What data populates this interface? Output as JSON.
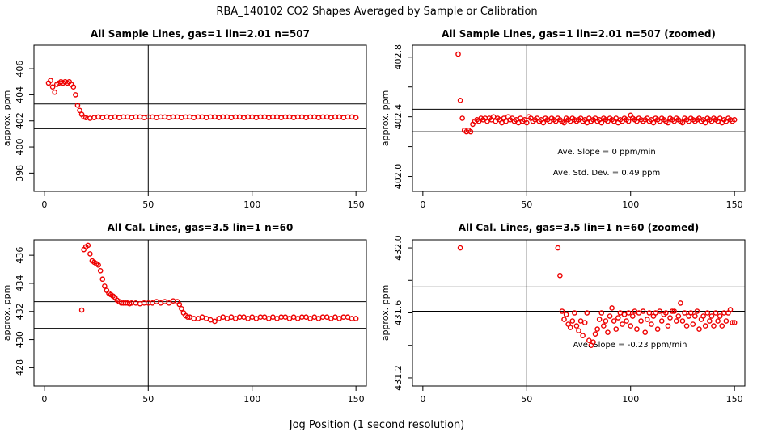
{
  "title": "RBA_140102  CO2 Shapes Averaged by Sample or Calibration",
  "xlabel": "Jog Position (1 second resolution)",
  "colors": {
    "points": "#ee0000",
    "lines": "#000000",
    "background": "#ffffff"
  },
  "chart_data": [
    {
      "type": "scatter",
      "title": "All Sample Lines, gas=1 lin=2.01 n=507",
      "ylabel": "approx. ppm",
      "xlim": [
        -5,
        155
      ],
      "ylim": [
        396.6,
        407.8
      ],
      "xticks": [
        0,
        50,
        100,
        150
      ],
      "yticks": [
        398,
        400,
        402,
        404,
        406
      ],
      "vline": 50,
      "hlines": [
        403.3,
        401.4
      ],
      "annotations": [],
      "series": [
        {
          "name": "sample average",
          "x": [
            2,
            3,
            4,
            5,
            6,
            7,
            8,
            9,
            10,
            11,
            12,
            13,
            14,
            15,
            16,
            17,
            18,
            19,
            20,
            22,
            24,
            26,
            28,
            30,
            32,
            34,
            36,
            38,
            40,
            42,
            44,
            46,
            48,
            50,
            52,
            54,
            56,
            58,
            60,
            62,
            64,
            66,
            68,
            70,
            72,
            74,
            76,
            78,
            80,
            82,
            84,
            86,
            88,
            90,
            92,
            94,
            96,
            98,
            100,
            102,
            104,
            106,
            108,
            110,
            112,
            114,
            116,
            118,
            120,
            122,
            124,
            126,
            128,
            130,
            132,
            134,
            136,
            138,
            140,
            142,
            144,
            146,
            148,
            150
          ],
          "y": [
            404.9,
            405.1,
            404.6,
            404.2,
            404.8,
            404.9,
            405.0,
            404.9,
            405.0,
            404.9,
            405.0,
            404.8,
            404.6,
            404.0,
            403.2,
            402.8,
            402.5,
            402.3,
            402.25,
            402.2,
            402.25,
            402.3,
            402.25,
            402.3,
            402.25,
            402.3,
            402.25,
            402.3,
            402.3,
            402.25,
            402.3,
            402.3,
            402.25,
            402.3,
            402.3,
            402.25,
            402.3,
            402.3,
            402.25,
            402.3,
            402.3,
            402.25,
            402.3,
            402.3,
            402.25,
            402.3,
            402.3,
            402.25,
            402.3,
            402.3,
            402.25,
            402.3,
            402.3,
            402.25,
            402.3,
            402.3,
            402.25,
            402.3,
            402.3,
            402.25,
            402.3,
            402.3,
            402.25,
            402.3,
            402.3,
            402.25,
            402.3,
            402.3,
            402.25,
            402.3,
            402.3,
            402.25,
            402.3,
            402.3,
            402.25,
            402.3,
            402.3,
            402.25,
            402.3,
            402.3,
            402.25,
            402.3,
            402.3,
            402.25
          ]
        }
      ]
    },
    {
      "type": "scatter",
      "title": "All Sample Lines, gas=1 lin=2.01 n=507 (zoomed)",
      "ylabel": "approx. ppm",
      "xlim": [
        -5,
        155
      ],
      "ylim": [
        401.9,
        402.88
      ],
      "xticks": [
        0,
        50,
        100,
        150
      ],
      "yticks": [
        402.0,
        402.2,
        402.4,
        402.6,
        402.8
      ],
      "ytick_labels": [
        "402.0",
        "",
        "402.4",
        "",
        "402.8"
      ],
      "vline": 50,
      "hlines": [
        402.45,
        402.3
      ],
      "annotations": [
        "Ave. Slope =  0  ppm/min",
        "Ave. Std. Dev. =  0.49  ppm"
      ],
      "series": [
        {
          "name": "sample average (zoomed)",
          "x": [
            17,
            18,
            19,
            20,
            21,
            22,
            23,
            24,
            25,
            26,
            27,
            28,
            29,
            30,
            31,
            32,
            33,
            34,
            35,
            36,
            37,
            38,
            39,
            40,
            41,
            42,
            43,
            44,
            45,
            46,
            47,
            48,
            49,
            50,
            51,
            52,
            53,
            54,
            55,
            56,
            57,
            58,
            59,
            60,
            61,
            62,
            63,
            64,
            65,
            66,
            67,
            68,
            69,
            70,
            71,
            72,
            73,
            74,
            75,
            76,
            77,
            78,
            79,
            80,
            81,
            82,
            83,
            84,
            85,
            86,
            87,
            88,
            89,
            90,
            91,
            92,
            93,
            94,
            95,
            96,
            97,
            98,
            99,
            100,
            101,
            102,
            103,
            104,
            105,
            106,
            107,
            108,
            109,
            110,
            111,
            112,
            113,
            114,
            115,
            116,
            117,
            118,
            119,
            120,
            121,
            122,
            123,
            124,
            125,
            126,
            127,
            128,
            129,
            130,
            131,
            132,
            133,
            134,
            135,
            136,
            137,
            138,
            139,
            140,
            141,
            142,
            143,
            144,
            145,
            146,
            147,
            148,
            149,
            150
          ],
          "y": [
            402.82,
            402.51,
            402.39,
            402.31,
            402.3,
            402.31,
            402.3,
            402.35,
            402.37,
            402.38,
            402.37,
            402.39,
            402.38,
            402.39,
            402.37,
            402.39,
            402.38,
            402.4,
            402.37,
            402.39,
            402.38,
            402.36,
            402.39,
            402.37,
            402.4,
            402.38,
            402.39,
            402.37,
            402.38,
            402.36,
            402.39,
            402.37,
            402.38,
            402.36,
            402.4,
            402.39,
            402.37,
            402.38,
            402.39,
            402.37,
            402.38,
            402.36,
            402.39,
            402.38,
            402.37,
            402.39,
            402.38,
            402.37,
            402.39,
            402.38,
            402.37,
            402.36,
            402.39,
            402.38,
            402.37,
            402.39,
            402.38,
            402.37,
            402.38,
            402.39,
            402.37,
            402.38,
            402.36,
            402.39,
            402.37,
            402.38,
            402.39,
            402.37,
            402.38,
            402.36,
            402.39,
            402.38,
            402.37,
            402.39,
            402.38,
            402.37,
            402.39,
            402.36,
            402.38,
            402.37,
            402.39,
            402.38,
            402.37,
            402.41,
            402.39,
            402.38,
            402.37,
            402.39,
            402.38,
            402.37,
            402.38,
            402.39,
            402.37,
            402.38,
            402.36,
            402.39,
            402.38,
            402.37,
            402.39,
            402.38,
            402.37,
            402.36,
            402.39,
            402.38,
            402.37,
            402.39,
            402.38,
            402.37,
            402.36,
            402.39,
            402.38,
            402.37,
            402.39,
            402.38,
            402.37,
            402.38,
            402.39,
            402.37,
            402.38,
            402.36,
            402.39,
            402.38,
            402.37,
            402.39,
            402.38,
            402.37,
            402.39,
            402.36,
            402.38,
            402.37,
            402.39,
            402.38,
            402.37,
            402.38
          ]
        }
      ]
    },
    {
      "type": "scatter",
      "title": "All Cal. Lines, gas=3.5 lin=1 n=60",
      "ylabel": "approx. ppm",
      "xlim": [
        -5,
        155
      ],
      "ylim": [
        426.7,
        437.1
      ],
      "xticks": [
        0,
        50,
        100,
        150
      ],
      "yticks": [
        428,
        430,
        432,
        434,
        436
      ],
      "vline": 50,
      "hlines": [
        432.7,
        430.8
      ],
      "annotations": [],
      "series": [
        {
          "name": "calibration average",
          "x": [
            18,
            19,
            20,
            21,
            22,
            23,
            24,
            25,
            26,
            27,
            28,
            29,
            30,
            31,
            32,
            33,
            34,
            35,
            36,
            37,
            38,
            39,
            40,
            41,
            42,
            44,
            46,
            48,
            50,
            52,
            54,
            56,
            58,
            60,
            62,
            64,
            65,
            66,
            67,
            68,
            69,
            70,
            72,
            74,
            76,
            78,
            80,
            82,
            84,
            86,
            88,
            90,
            92,
            94,
            96,
            98,
            100,
            102,
            104,
            106,
            108,
            110,
            112,
            114,
            116,
            118,
            120,
            122,
            124,
            126,
            128,
            130,
            132,
            134,
            136,
            138,
            140,
            142,
            144,
            146,
            148,
            150
          ],
          "y": [
            432.1,
            436.4,
            436.6,
            436.7,
            436.1,
            435.6,
            435.5,
            435.4,
            435.3,
            434.9,
            434.3,
            433.8,
            433.5,
            433.3,
            433.2,
            433.1,
            433.0,
            432.8,
            432.7,
            432.6,
            432.6,
            432.6,
            432.6,
            432.55,
            432.6,
            432.6,
            432.55,
            432.6,
            432.6,
            432.6,
            432.7,
            432.6,
            432.7,
            432.6,
            432.75,
            432.7,
            432.5,
            432.2,
            431.9,
            431.7,
            431.6,
            431.6,
            431.5,
            431.5,
            431.6,
            431.5,
            431.4,
            431.3,
            431.5,
            431.6,
            431.5,
            431.6,
            431.5,
            431.6,
            431.6,
            431.5,
            431.6,
            431.5,
            431.6,
            431.6,
            431.5,
            431.6,
            431.5,
            431.6,
            431.6,
            431.5,
            431.6,
            431.5,
            431.6,
            431.6,
            431.5,
            431.6,
            431.5,
            431.6,
            431.6,
            431.5,
            431.6,
            431.5,
            431.6,
            431.6,
            431.5,
            431.5
          ]
        }
      ]
    },
    {
      "type": "scatter",
      "title": "All Cal. Lines, gas=3.5 lin=1 n=60 (zoomed)",
      "ylabel": "approx. ppm",
      "xlim": [
        -5,
        155
      ],
      "ylim": [
        431.15,
        432.05
      ],
      "xticks": [
        0,
        50,
        100,
        150
      ],
      "yticks": [
        431.2,
        431.4,
        431.6,
        431.8,
        432.0
      ],
      "ytick_labels": [
        "431.2",
        "",
        "431.6",
        "",
        "432.0"
      ],
      "vline": 50,
      "hlines": [
        431.76,
        431.61
      ],
      "annotations": [
        "Ave. Slope =  -0.23  ppm/min"
      ],
      "series": [
        {
          "name": "calibration average (zoomed)",
          "x": [
            18,
            65,
            66,
            67,
            68,
            69,
            70,
            71,
            72,
            73,
            74,
            75,
            76,
            77,
            78,
            79,
            80,
            81,
            82,
            83,
            84,
            85,
            86,
            87,
            88,
            89,
            90,
            91,
            92,
            93,
            94,
            95,
            96,
            97,
            98,
            99,
            100,
            101,
            102,
            103,
            104,
            105,
            106,
            107,
            108,
            109,
            110,
            111,
            112,
            113,
            114,
            115,
            116,
            117,
            118,
            119,
            120,
            121,
            122,
            123,
            124,
            125,
            126,
            127,
            128,
            129,
            130,
            131,
            132,
            133,
            134,
            135,
            136,
            137,
            138,
            139,
            140,
            141,
            142,
            143,
            144,
            145,
            146,
            147,
            148,
            149,
            150
          ],
          "y": [
            432.0,
            432.0,
            431.83,
            431.61,
            431.56,
            431.59,
            431.53,
            431.51,
            431.55,
            431.6,
            431.52,
            431.49,
            431.55,
            431.46,
            431.54,
            431.6,
            431.43,
            431.4,
            431.42,
            431.47,
            431.5,
            431.56,
            431.6,
            431.52,
            431.55,
            431.48,
            431.58,
            431.63,
            431.55,
            431.5,
            431.57,
            431.6,
            431.53,
            431.59,
            431.55,
            431.6,
            431.52,
            431.58,
            431.61,
            431.5,
            431.6,
            431.55,
            431.61,
            431.48,
            431.56,
            431.6,
            431.53,
            431.58,
            431.6,
            431.5,
            431.61,
            431.55,
            431.59,
            431.6,
            431.52,
            431.57,
            431.61,
            431.61,
            431.55,
            431.58,
            431.66,
            431.55,
            431.6,
            431.52,
            431.58,
            431.6,
            431.53,
            431.58,
            431.61,
            431.5,
            431.56,
            431.58,
            431.52,
            431.6,
            431.55,
            431.58,
            431.52,
            431.6,
            431.55,
            431.58,
            431.52,
            431.6,
            431.55,
            431.6,
            431.62,
            431.54,
            431.54
          ]
        }
      ]
    }
  ]
}
